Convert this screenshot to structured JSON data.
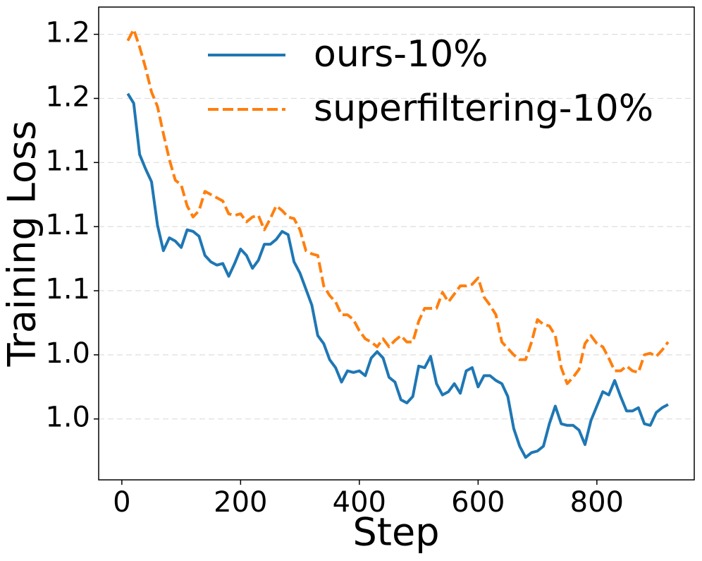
{
  "chart_data": {
    "type": "line",
    "xlabel": "Step",
    "ylabel": "Training Loss",
    "x": [
      10,
      20,
      30,
      40,
      50,
      60,
      70,
      80,
      90,
      100,
      110,
      120,
      130,
      140,
      150,
      160,
      170,
      180,
      190,
      200,
      210,
      220,
      230,
      240,
      250,
      260,
      270,
      280,
      290,
      300,
      310,
      320,
      330,
      340,
      350,
      360,
      370,
      380,
      390,
      400,
      410,
      420,
      430,
      440,
      450,
      460,
      470,
      480,
      490,
      500,
      510,
      520,
      530,
      540,
      550,
      560,
      570,
      580,
      590,
      600,
      610,
      620,
      630,
      640,
      650,
      660,
      670,
      680,
      690,
      700,
      710,
      720,
      730,
      740,
      750,
      760,
      770,
      780,
      790,
      800,
      810,
      820,
      830,
      840,
      850,
      860,
      870,
      880,
      890,
      900,
      910,
      920
    ],
    "series": [
      {
        "name": "ours-10%",
        "color": "#1f77b4",
        "linestyle": "solid",
        "values": [
          1.183,
          1.177,
          1.145,
          1.136,
          1.128,
          1.101,
          1.085,
          1.093,
          1.091,
          1.087,
          1.098,
          1.097,
          1.094,
          1.082,
          1.078,
          1.076,
          1.077,
          1.069,
          1.077,
          1.086,
          1.082,
          1.074,
          1.079,
          1.089,
          1.089,
          1.092,
          1.097,
          1.095,
          1.078,
          1.071,
          1.061,
          1.051,
          1.032,
          1.027,
          1.017,
          1.012,
          1.003,
          1.01,
          1.009,
          1.01,
          1.007,
          1.018,
          1.022,
          1.018,
          1.006,
          1.003,
          0.992,
          0.99,
          0.994,
          1.013,
          1.012,
          1.019,
          1.002,
          0.995,
          0.997,
          1.002,
          0.996,
          1.01,
          1.012,
          1.0,
          1.007,
          1.007,
          1.004,
          1.002,
          0.994,
          0.974,
          0.963,
          0.956,
          0.959,
          0.96,
          0.963,
          0.977,
          0.988,
          0.977,
          0.976,
          0.976,
          0.973,
          0.964,
          0.979,
          0.988,
          0.997,
          0.995,
          1.004,
          0.994,
          0.985,
          0.985,
          0.987,
          0.977,
          0.976,
          0.984,
          0.987,
          0.989
        ]
      },
      {
        "name": "superfiltering-10%",
        "color": "#ff7f0e",
        "linestyle": "dashed",
        "values": [
          1.216,
          1.223,
          1.212,
          1.199,
          1.184,
          1.175,
          1.158,
          1.142,
          1.129,
          1.126,
          1.113,
          1.106,
          1.11,
          1.122,
          1.12,
          1.118,
          1.116,
          1.108,
          1.107,
          1.108,
          1.103,
          1.106,
          1.107,
          1.098,
          1.105,
          1.113,
          1.11,
          1.106,
          1.105,
          1.098,
          1.085,
          1.083,
          1.082,
          1.063,
          1.057,
          1.053,
          1.045,
          1.045,
          1.042,
          1.035,
          1.03,
          1.028,
          1.025,
          1.03,
          1.025,
          1.029,
          1.032,
          1.028,
          1.028,
          1.041,
          1.049,
          1.049,
          1.049,
          1.059,
          1.053,
          1.058,
          1.063,
          1.063,
          1.064,
          1.068,
          1.056,
          1.051,
          1.045,
          1.028,
          1.024,
          1.02,
          1.017,
          1.017,
          1.028,
          1.042,
          1.039,
          1.038,
          1.032,
          1.012,
          1.002,
          1.006,
          1.011,
          1.027,
          1.032,
          1.027,
          1.025,
          1.018,
          1.01,
          1.01,
          1.013,
          1.01,
          1.009,
          1.02,
          1.021,
          1.019,
          1.023,
          1.028
        ]
      }
    ],
    "xlim": [
      -39,
      964
    ],
    "xticks": [
      0,
      200,
      400,
      600,
      800
    ],
    "ylim": [
      0.942,
      1.237
    ],
    "yticks": [
      {
        "value": 0.98,
        "label": "1.0"
      },
      {
        "value": 1.02,
        "label": "1.0"
      },
      {
        "value": 1.06,
        "label": "1.1"
      },
      {
        "value": 1.1,
        "label": "1.1"
      },
      {
        "value": 1.14,
        "label": "1.1"
      },
      {
        "value": 1.18,
        "label": "1.2"
      },
      {
        "value": 1.22,
        "label": "1.2"
      }
    ],
    "grid": true,
    "legend": "top"
  }
}
